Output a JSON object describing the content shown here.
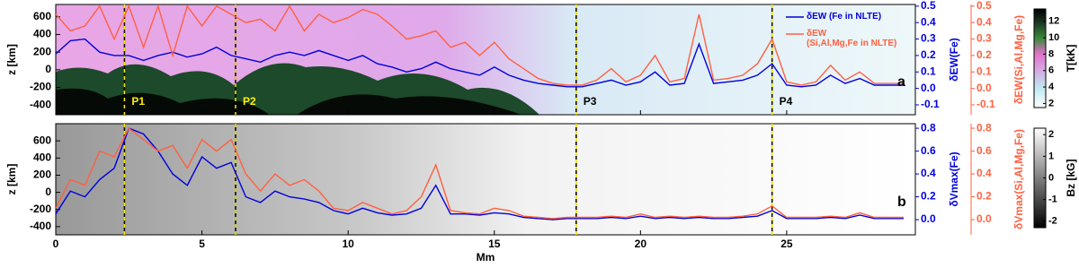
{
  "chart_data": [
    {
      "type": "line",
      "panel_label": "a",
      "ylabel": "z [km]",
      "ylim": [
        -510,
        740
      ],
      "yticks": [
        -400,
        -200,
        0,
        200,
        400,
        600
      ],
      "y2label": "δEW(Fe)",
      "y2lim": [
        -0.16,
        0.51
      ],
      "y2ticks": [
        -0.1,
        {
          "value": 0,
          "label": "0.0"
        },
        0.1,
        0.2,
        0.3,
        0.4,
        0.5
      ],
      "y3label": "δEW(Si,Al,Mg,Fe)",
      "y3lim": [
        -0.16,
        0.51
      ],
      "y3ticks": [
        -0.1,
        {
          "value": 0,
          "label": "0.0"
        },
        0.1,
        0.2,
        0.3,
        0.4,
        0.5
      ],
      "xlim": [
        0,
        29.4
      ],
      "markers": [
        {
          "x": 2.35,
          "label": "P1"
        },
        {
          "x": 6.15,
          "label": "P2"
        },
        {
          "x": 17.8,
          "label": "P3"
        },
        {
          "x": 24.5,
          "label": "P4"
        }
      ],
      "colorbar": {
        "label": "T[kK]",
        "lim": [
          1.5,
          13.5
        ],
        "ticks": [
          2,
          4,
          6,
          8,
          10,
          12
        ]
      },
      "x": [
        0,
        0.5,
        1,
        1.5,
        2,
        2.5,
        3,
        3.5,
        4,
        4.5,
        5,
        5.5,
        6,
        6.5,
        7,
        7.5,
        8,
        8.5,
        9,
        9.5,
        10,
        10.5,
        11,
        11.5,
        12,
        12.5,
        13,
        13.5,
        14,
        14.5,
        15,
        15.5,
        16,
        16.5,
        17,
        17.5,
        18,
        18.5,
        19,
        19.5,
        20,
        20.5,
        21,
        21.5,
        22,
        22.5,
        23,
        23.5,
        24,
        24.5,
        25,
        25.5,
        26,
        26.5,
        27,
        27.5,
        28,
        28.5,
        29
      ],
      "series": [
        {
          "name": "δEW (Fe in NLTE)",
          "color": "#0000dd",
          "axis": "y2",
          "values": [
            0.21,
            0.29,
            0.3,
            0.22,
            0.2,
            0.2,
            0.17,
            0.2,
            0.22,
            0.19,
            0.21,
            0.25,
            0.2,
            0.18,
            0.16,
            0.2,
            0.22,
            0.2,
            0.23,
            0.2,
            0.17,
            0.2,
            0.15,
            0.13,
            0.1,
            0.12,
            0.16,
            0.12,
            0.1,
            0.08,
            0.13,
            0.08,
            0.05,
            0.03,
            0.02,
            0.01,
            0.01,
            0.03,
            0.05,
            0.02,
            0.04,
            0.1,
            0.02,
            0.03,
            0.27,
            0.03,
            0.04,
            0.05,
            0.08,
            0.15,
            0.02,
            0.01,
            0.02,
            0.08,
            0.03,
            0.06,
            0.02,
            0.02,
            0.02
          ]
        },
        {
          "name": "δEW\n(Si,Al,Mg,Fe in NLTE)",
          "color": "#ff6040",
          "axis": "y3",
          "values": [
            0.45,
            0.35,
            0.38,
            0.5,
            0.3,
            0.5,
            0.25,
            0.5,
            0.2,
            0.5,
            0.38,
            0.5,
            0.45,
            0.4,
            0.42,
            0.35,
            0.5,
            0.35,
            0.45,
            0.4,
            0.43,
            0.48,
            0.45,
            0.38,
            0.3,
            0.32,
            0.35,
            0.25,
            0.28,
            0.2,
            0.28,
            0.18,
            0.12,
            0.06,
            0.03,
            0.02,
            0.02,
            0.05,
            0.12,
            0.04,
            0.08,
            0.2,
            0.04,
            0.06,
            0.45,
            0.05,
            0.06,
            0.08,
            0.15,
            0.3,
            0.04,
            0.02,
            0.04,
            0.14,
            0.05,
            0.1,
            0.03,
            0.03,
            0.03
          ]
        }
      ]
    },
    {
      "type": "line",
      "panel_label": "b",
      "ylabel": "z [km]",
      "ylim": [
        -495,
        800
      ],
      "yticks": [
        -400,
        -200,
        0,
        200,
        400,
        600
      ],
      "y2label": "δVmax(Fe)",
      "y2lim": [
        -0.133,
        0.84
      ],
      "y2ticks": [
        {
          "value": 0,
          "label": "0.0"
        },
        0.2,
        0.4,
        0.6,
        0.8
      ],
      "y3label": "δVmax(Si,Al,Mg,Fe)",
      "y3lim": [
        -0.133,
        0.84
      ],
      "y3ticks": [
        {
          "value": 0,
          "label": "0.0"
        },
        0.2,
        0.4,
        0.6,
        0.8
      ],
      "xlabel": "Mm",
      "xlim": [
        0,
        29.4
      ],
      "xticks": [
        0,
        5,
        10,
        15,
        20,
        25
      ],
      "markers": [
        {
          "x": 2.35
        },
        {
          "x": 6.15
        },
        {
          "x": 17.8
        },
        {
          "x": 24.5
        }
      ],
      "colorbar": {
        "label": "Bz [kG]",
        "lim": [
          -2.3,
          2.3
        ],
        "ticks": [
          -2,
          -1,
          0,
          1,
          2
        ]
      },
      "x": [
        0,
        0.5,
        1,
        1.5,
        2,
        2.5,
        3,
        3.5,
        4,
        4.5,
        5,
        5.5,
        6,
        6.5,
        7,
        7.5,
        8,
        8.5,
        9,
        9.5,
        10,
        10.5,
        11,
        11.5,
        12,
        12.5,
        13,
        13.5,
        14,
        14.5,
        15,
        15.5,
        16,
        16.5,
        17,
        17.5,
        18,
        18.5,
        19,
        19.5,
        20,
        20.5,
        21,
        21.5,
        22,
        22.5,
        23,
        23.5,
        24,
        24.5,
        25,
        25.5,
        26,
        26.5,
        27,
        27.5,
        28,
        28.5,
        29
      ],
      "series": [
        {
          "color": "#0000dd",
          "axis": "y2",
          "values": [
            0.05,
            0.25,
            0.2,
            0.35,
            0.45,
            0.8,
            0.75,
            0.6,
            0.4,
            0.3,
            0.55,
            0.45,
            0.5,
            0.2,
            0.15,
            0.25,
            0.2,
            0.18,
            0.15,
            0.08,
            0.05,
            0.1,
            0.06,
            0.04,
            0.05,
            0.1,
            0.3,
            0.05,
            0.05,
            0.04,
            0.06,
            0.05,
            0.02,
            0.01,
            0.0,
            0.01,
            0.01,
            0.01,
            0.02,
            0.01,
            0.03,
            0.01,
            0.02,
            0.01,
            0.02,
            0.01,
            0.01,
            0.02,
            0.03,
            0.08,
            0.01,
            0.01,
            0.01,
            0.02,
            0.01,
            0.04,
            0.01,
            0.01,
            0.01
          ]
        },
        {
          "color": "#ff6040",
          "axis": "y3",
          "values": [
            0.1,
            0.35,
            0.3,
            0.6,
            0.55,
            0.8,
            0.7,
            0.6,
            0.65,
            0.45,
            0.7,
            0.6,
            0.7,
            0.4,
            0.25,
            0.4,
            0.3,
            0.35,
            0.25,
            0.1,
            0.08,
            0.15,
            0.1,
            0.05,
            0.08,
            0.2,
            0.48,
            0.08,
            0.06,
            0.05,
            0.1,
            0.08,
            0.03,
            0.02,
            0.01,
            0.02,
            0.02,
            0.02,
            0.03,
            0.02,
            0.05,
            0.02,
            0.03,
            0.02,
            0.03,
            0.02,
            0.02,
            0.03,
            0.05,
            0.12,
            0.02,
            0.02,
            0.02,
            0.03,
            0.02,
            0.06,
            0.02,
            0.02,
            0.02
          ]
        }
      ]
    }
  ]
}
